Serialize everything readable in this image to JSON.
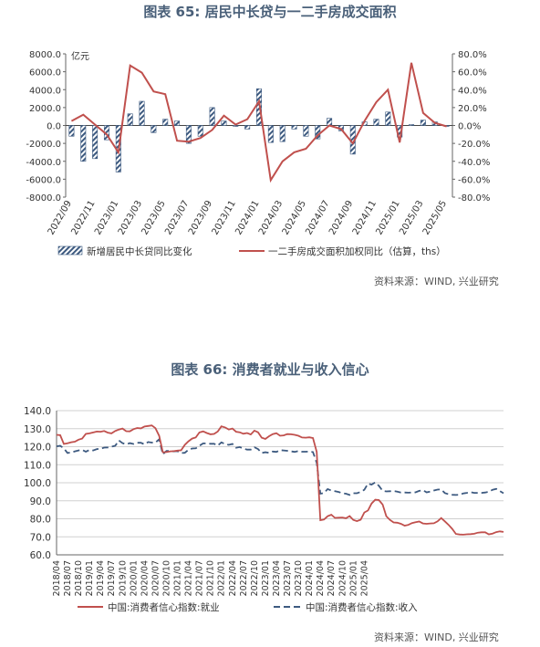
{
  "chart1": {
    "title": "图表 65: 居民中长贷与一二手房成交面积",
    "source": "资料来源：WIND, 兴业研究",
    "left_unit": "亿元",
    "left_ticks": [
      "8000.0",
      "6000.0",
      "4000.0",
      "2000.0",
      "0.0",
      "-2000.0",
      "-4000.0",
      "-6000.0",
      "-8000.0"
    ],
    "right_ticks": [
      "80.0%",
      "60.0%",
      "40.0%",
      "20.0%",
      "0.0%",
      "-20.0%",
      "-40.0%",
      "-60.0%",
      "-80.0%"
    ],
    "x_labels": [
      "2022/09",
      "2022/11",
      "2023/01",
      "2023/03",
      "2023/05",
      "2023/07",
      "2023/09",
      "2023/11",
      "2024/01",
      "2024/03",
      "2024/05",
      "2024/07",
      "2024/09",
      "2024/11",
      "2025/01",
      "2025/03",
      "2025/05"
    ],
    "legend": [
      "新增居民中长贷同比变化",
      "一二手房成交面积加权同比（估算，ths）"
    ],
    "colors": {
      "bar": "#3d5a80",
      "line": "#c0504d"
    }
  },
  "chart2": {
    "title": "图表 66: 消费者就业与收入信心",
    "source": "资料来源：WIND, 兴业研究",
    "y_ticks": [
      "140.0",
      "130.0",
      "120.0",
      "110.0",
      "100.0",
      "90.0",
      "80.0",
      "70.0",
      "60.0"
    ],
    "x_labels": [
      "2018/04",
      "2018/07",
      "2018/10",
      "2019/01",
      "2019/04",
      "2019/07",
      "2019/10",
      "2020/01",
      "2020/04",
      "2020/07",
      "2020/10",
      "2021/01",
      "2021/04",
      "2021/07",
      "2021/10",
      "2022/01",
      "2022/04",
      "2022/07",
      "2022/10",
      "2023/01",
      "2023/04",
      "2023/07",
      "2023/10",
      "2024/01",
      "2024/04",
      "2024/07",
      "2024/10",
      "2025/01",
      "2025/04"
    ],
    "legend": [
      "中国:消费者信心指数:就业",
      "中国:消费者信心指数:收入"
    ],
    "colors": {
      "employment": "#c0504d",
      "income": "#3d5a80"
    }
  },
  "chart_data": [
    {
      "type": "bar+line",
      "x": [
        "2022/09",
        "2022/10",
        "2022/11",
        "2022/12",
        "2023/01",
        "2023/02",
        "2023/03",
        "2023/04",
        "2023/05",
        "2023/06",
        "2023/07",
        "2023/08",
        "2023/09",
        "2023/10",
        "2023/11",
        "2023/12",
        "2024/01",
        "2024/02",
        "2024/03",
        "2024/04",
        "2024/05",
        "2024/06",
        "2024/07",
        "2024/08",
        "2024/09",
        "2024/10",
        "2024/11",
        "2024/12",
        "2025/01",
        "2025/02",
        "2025/03",
        "2025/04",
        "2025/05"
      ],
      "series": [
        {
          "name": "新增居民中长贷同比变化",
          "axis": "left",
          "values": [
            -1200,
            -4000,
            -3700,
            -1600,
            -5200,
            1300,
            2700,
            -800,
            700,
            500,
            -2000,
            -1200,
            2000,
            500,
            -100,
            -400,
            4100,
            -1900,
            -1800,
            -400,
            -1200,
            -1500,
            800,
            -600,
            -3200,
            400,
            700,
            1500,
            -1300,
            100,
            600,
            400,
            -100
          ]
        },
        {
          "name": "一二手房成交面积加权同比（估算，ths）",
          "axis": "right",
          "values": [
            5,
            12,
            1,
            -10,
            -30,
            67,
            59,
            38,
            35,
            -17,
            -18,
            -14,
            -5,
            11,
            1,
            7,
            27,
            -61,
            -40,
            -30,
            -26,
            -11,
            0,
            -4,
            -20,
            5,
            26,
            40,
            -19,
            70,
            14,
            3,
            -1
          ]
        }
      ],
      "left_ylim": [
        -8000,
        8000
      ],
      "right_ylim": [
        -80,
        80
      ],
      "ylabel": "亿元"
    },
    {
      "type": "line",
      "x_start": "2018/04",
      "x_end": "2025/05",
      "ylim": [
        60,
        140
      ],
      "series": [
        {
          "name": "中国:消费者信心指数:就业",
          "values": [
            126.6,
            126.4,
            121.5,
            121.9,
            122.5,
            122.8,
            123.9,
            124.5,
            127.1,
            127.4,
            127.9,
            128.4,
            128.3,
            128.7,
            127.8,
            127.4,
            128.7,
            129.5,
            130.1,
            128.6,
            128.5,
            129.7,
            130.4,
            130.2,
            131.2,
            131.5,
            131.8,
            130.3,
            126.0,
            116.9,
            117.0,
            117.4,
            117.5,
            117.8,
            118.0,
            121.0,
            123.0,
            124.5,
            125.1,
            127.9,
            128.5,
            127.6,
            126.9,
            127.1,
            128.4,
            131.3,
            130.7,
            129.5,
            130.1,
            128.3,
            128.0,
            127.2,
            127.6,
            126.8,
            128.9,
            128.0,
            125.0,
            124.3,
            125.8,
            127.0,
            127.5,
            126.1,
            126.3,
            127.0,
            126.9,
            126.6,
            126.1,
            125.1,
            125.0,
            125.2,
            124.8,
            117.1,
            79.2,
            79.6,
            81.4,
            82.3,
            80.5,
            80.6,
            80.7,
            80.3,
            81.5,
            79.4,
            78.7,
            79.5,
            83.5,
            84.6,
            88.5,
            90.6,
            90.4,
            87.9,
            81.4,
            79.4,
            78.0,
            77.8,
            77.2,
            76.2,
            76.6,
            77.6,
            78.1,
            78.5,
            77.4,
            77.2,
            77.4,
            77.5,
            78.6,
            80.4,
            78.6,
            76.6,
            74.4,
            71.6,
            71.3,
            71.2,
            71.4,
            71.5,
            71.7,
            72.3,
            72.5,
            72.5,
            71.4,
            71.8,
            72.6,
            73.0,
            72.7
          ]
        },
        {
          "name": "中国:消费者信心指数:收入",
          "values": [
            120.2,
            120.5,
            119.1,
            116.5,
            116.8,
            117.4,
            117.9,
            118.3,
            117.2,
            118.2,
            117.9,
            118.7,
            118.9,
            119.5,
            119.6,
            120.0,
            120.5,
            123.5,
            122.0,
            121.3,
            122.0,
            121.5,
            122.2,
            122.2,
            121.3,
            122.6,
            122.3,
            122.3,
            124.1,
            115.8,
            117.6,
            117.6,
            117.4,
            117.5,
            116.5,
            116.6,
            118.3,
            119.0,
            119.1,
            120.5,
            121.8,
            121.8,
            121.6,
            121.6,
            120.6,
            122.4,
            121.5,
            121.0,
            121.5,
            119.4,
            119.8,
            119.0,
            118.4,
            118.4,
            119.7,
            118.7,
            116.5,
            116.9,
            116.6,
            117.3,
            117.1,
            118.1,
            117.9,
            117.7,
            117.4,
            117.1,
            117.6,
            117.2,
            117.2,
            117.3,
            117.0,
            111.1,
            93.9,
            94.3,
            96.5,
            95.7,
            95.3,
            94.9,
            94.2,
            93.9,
            93.2,
            94.2,
            94.2,
            94.9,
            96.1,
            99.5,
            99.0,
            100.2,
            98.3,
            95.5,
            95.2,
            95.3,
            95.4,
            95.1,
            94.6,
            94.6,
            94.5,
            94.6,
            94.7,
            95.5,
            95.9,
            94.7,
            95.1,
            95.7,
            96.2,
            96.3,
            94.3,
            93.6,
            93.3,
            93.2,
            93.3,
            94.1,
            94.4,
            94.8,
            94.4,
            94.4,
            94.4,
            94.6,
            95.0,
            96.1,
            96.6,
            95.4,
            94.2
          ]
        }
      ]
    }
  ]
}
